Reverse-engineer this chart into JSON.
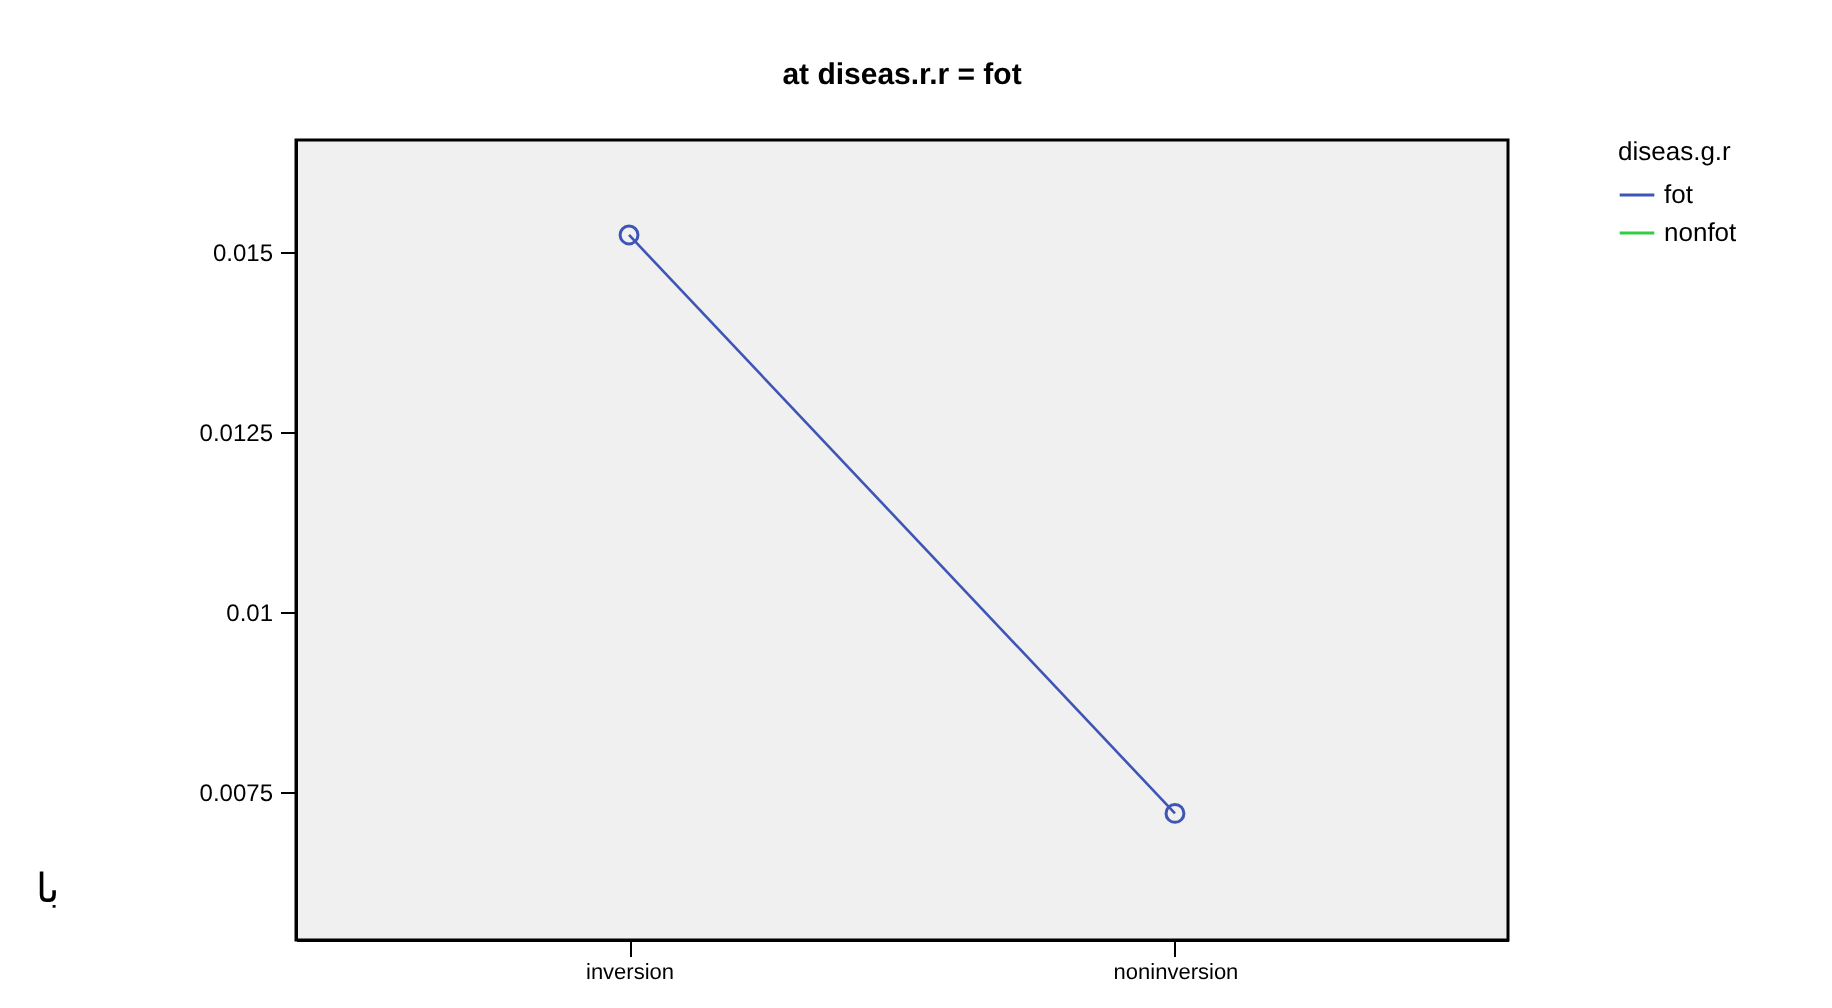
{
  "chart_data": {
    "type": "line",
    "title": "at diseas.r.r = fot",
    "legend_title": "diseas.g.r",
    "categories": [
      "inversion",
      "noninversion"
    ],
    "series": [
      {
        "name": "fot",
        "color": "#3f55b5",
        "values": [
          0.01524,
          0.0072
        ]
      },
      {
        "name": "nonfot",
        "color": "#33cc44",
        "values": [
          null,
          null
        ]
      }
    ],
    "ylim": [
      0.00544,
      0.01656
    ],
    "yticks": [
      0.0075,
      0.01,
      0.0125,
      0.015
    ],
    "grid": false,
    "legend": "top right",
    "marker": "circle",
    "line_style": "solid",
    "annotations": [
      "با"
    ]
  }
}
